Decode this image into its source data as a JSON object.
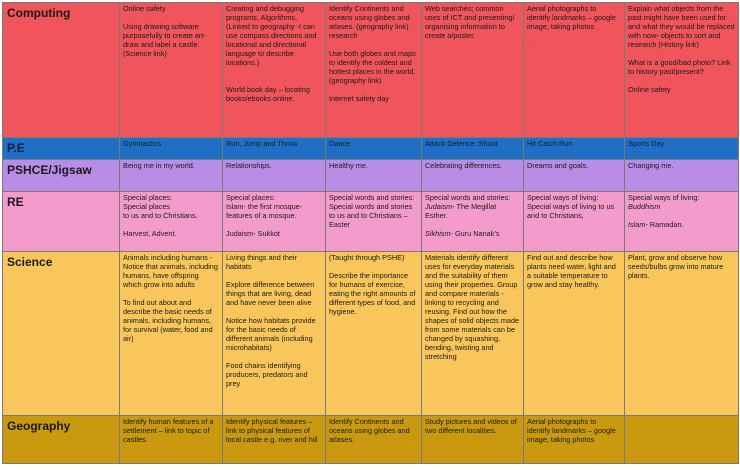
{
  "rows": {
    "computing": {
      "subject": "Computing",
      "cells": [
        "Online safety\n\nUsing drawing software purposefully to create art-draw and label a castle. (Science link)",
        "Creating and debugging programs, Algorithms, (Linked to geography -I can use compass directions and locational and directional language to describe locations.)\n\n\nWorld book day – locating books/ebooks online.",
        "Identify Continents and oceans using globes and atlases. (geography link) research\n\nUse both globes and maps to identify the coldest and hottest places in the world. (geography link)\n\nInternet safety day",
        "Web searches; common uses of ICT and presenting/ organising information to create a/poster.",
        "Aerial photographs to identify landmarks – google image, taking photos\n\n.",
        "Explain what objects from the past might have been used for and what they would be replaced with now- objects to sort and research (History link)\n\nWhat is a good/bad photo? Link to history past/present?\n\nOnline safety"
      ]
    },
    "pe": {
      "subject": "P.E",
      "cells": [
        "Gymnastics",
        "Run, Jump and Throw",
        "Dance",
        "Attack Defence, Shoot",
        "Hit Catch Run",
        "Sports Day"
      ]
    },
    "pshce": {
      "subject": "PSHCE/Jigsaw",
      "cells": [
        "Being me in my world.",
        "Relationships.",
        " Healthy me.",
        "Celebrating differences.",
        "Dreams and goals.",
        "Changing me."
      ]
    },
    "re": {
      "subject": "RE",
      "cells": [
        "Special places:\nSpecial places\nto us and to Christians.\n\nHarvest, Advent.",
        "Special places:\nIslam- the first mosque-features of a mosque.\n\nJudaism- Sukkot",
        "Special words and stories:\nSpecial words and stories to us and to Christians –Easter",
        "Special words and stories:",
        "Special ways of living:\nSpecial ways of living to us and to Christians,",
        "Special ways of living:"
      ],
      "re_d_judaism": "Judaism",
      "re_d_judaism_rest": "- The Megillat Esther.",
      "re_d_sikhism": "Sikhism",
      "re_d_sikhism_rest": "- Guru Nanak’s",
      "re_f_buddhism": "Buddhism",
      "re_f_islam": "Islam",
      "re_f_islam_rest": "- Ramadan."
    },
    "science": {
      "subject": "Science",
      "cells": [
        "Animals including humans - Notice that animals, including humans, have offspring which grow into adults\n\nTo find out about and describe the basic needs of animals, including humans, for survival (water, food and air)",
        "Living things and their habitats\n\nExplore difference between things that are living, dead and have never been alive\n\nNotice how habitats provide for the basic needs of different animals (including microhabitats)\n\nFood chains identifying producers, predators and prey",
        "(Taught through PSHE)\n\nDescribe the importance for humans of exercise, eating the right amounts of different types of food, and hygiene.",
        "Materials identify different uses for everyday materials and the suitability of them using their properties. Group and compare materials - linking to recycling and reusing. Find out how the shapes of solid objects made from some materials can be changed by squashing, bending, twisting and stretching",
        "Find out and describe how plants need water, light and a suitable temperature to grow and stay healthy.",
        "Plant, grow and observe how seeds/bulbs grow into mature plants."
      ]
    },
    "geography": {
      "subject": "Geography",
      "cells": [
        "Identify human features of a settlement – link to topic of castles.",
        "Identify physical features – link to physical features of local castle e.g. river and hill",
        "Identify Continents and oceans using globes and atlases.",
        " Study pictures and videos of two different localities.",
        "Aerial photographs to identify landmarks – google image, taking photos",
        ""
      ]
    }
  }
}
